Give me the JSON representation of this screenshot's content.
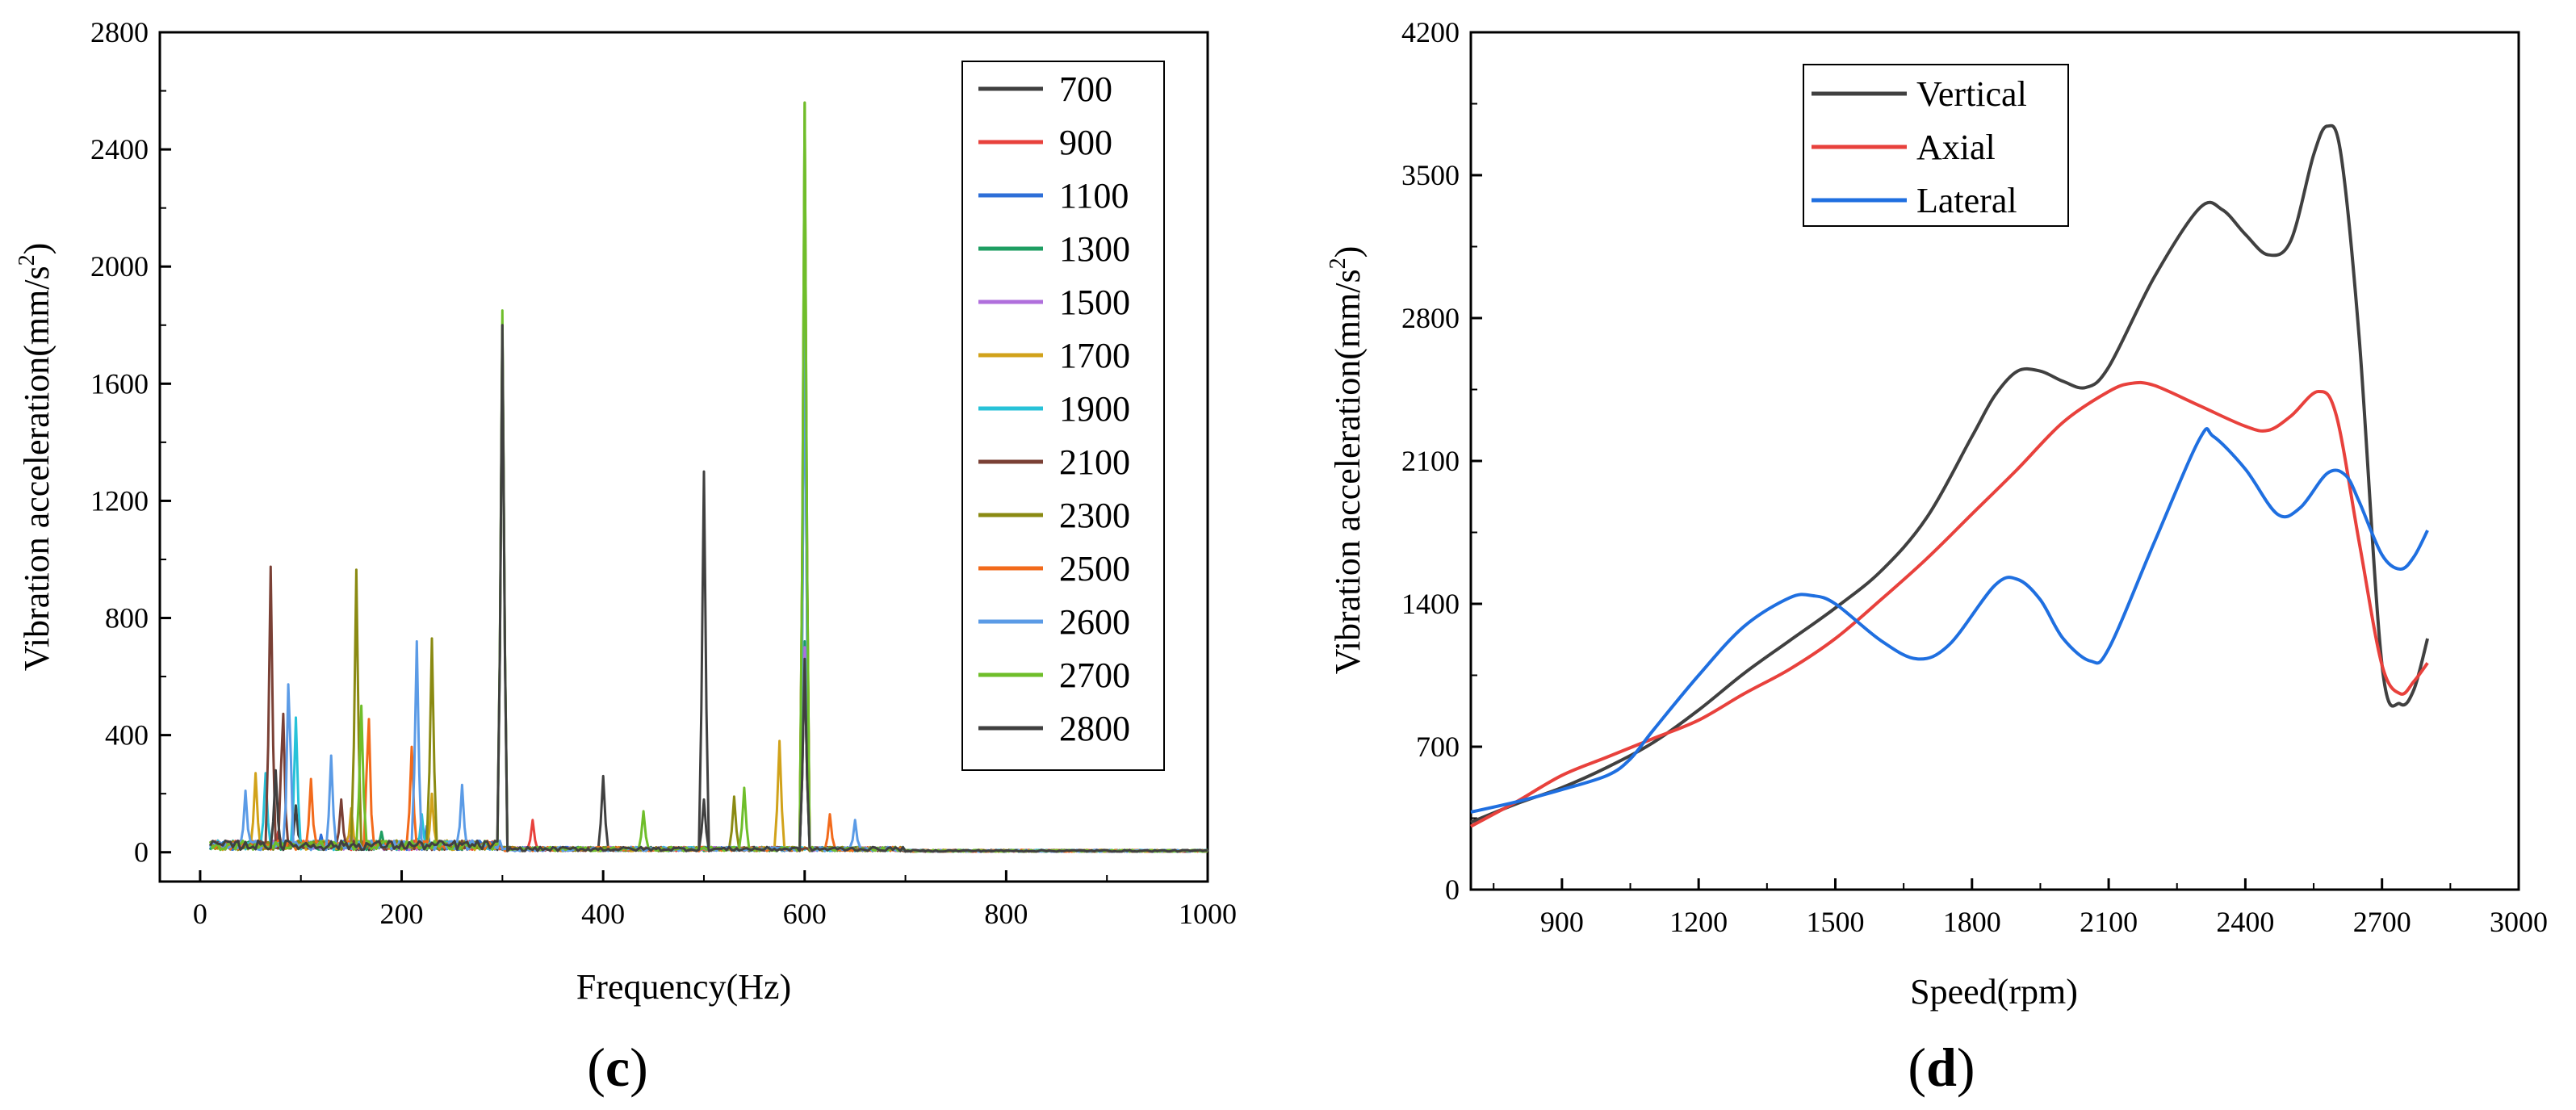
{
  "chart_data": [
    {
      "type": "line",
      "panel": "c",
      "panel_label": "c",
      "title": "",
      "xlabel": "Frequency(Hz)",
      "ylabel": "Vibration acceleration(mm/s",
      "ylabel_sup": "2",
      "ylabel_close": ")",
      "xlim": [
        -40,
        1000
      ],
      "ylim": [
        -100,
        2800
      ],
      "xticks": [
        0,
        200,
        400,
        600,
        800,
        1000
      ],
      "yticks": [
        0,
        400,
        800,
        1200,
        1600,
        2000,
        2400,
        2800
      ],
      "legend_position": "top-right",
      "series": [
        {
          "name": "700",
          "color": "#404040",
          "peaks": [
            [
              300,
              1800
            ],
            [
              500,
              1300
            ],
            [
              600,
              660
            ],
            [
              400,
              260
            ],
            [
              95,
              160
            ]
          ]
        },
        {
          "name": "900",
          "color": "#e8413c",
          "peaks": [
            [
              600,
              2350
            ],
            [
              330,
              110
            ],
            [
              78,
              80
            ]
          ]
        },
        {
          "name": "1100",
          "color": "#2e6fd8",
          "peaks": [
            [
              600,
              1880
            ],
            [
              225,
              90
            ],
            [
              120,
              60
            ]
          ]
        },
        {
          "name": "1300",
          "color": "#1e9e62",
          "peaks": [
            [
              600,
              720
            ],
            [
              180,
              70
            ],
            [
              60,
              50
            ]
          ]
        },
        {
          "name": "1500",
          "color": "#b06fdc",
          "peaks": [
            [
              600,
              700
            ],
            [
              150,
              60
            ],
            [
              90,
              40
            ]
          ]
        },
        {
          "name": "1700",
          "color": "#d1a21a",
          "peaks": [
            [
              55,
              270
            ],
            [
              230,
              200
            ],
            [
              575,
              380
            ],
            [
              150,
              150
            ]
          ]
        },
        {
          "name": "1900",
          "color": "#27c2d8",
          "peaks": [
            [
              95,
              460
            ],
            [
              65,
              270
            ],
            [
              220,
              130
            ]
          ]
        },
        {
          "name": "2100",
          "color": "#7a4035",
          "peaks": [
            [
              70,
              975
            ],
            [
              82,
              540
            ],
            [
              140,
              180
            ]
          ]
        },
        {
          "name": "2300",
          "color": "#8a8a12",
          "peaks": [
            [
              155,
              965
            ],
            [
              230,
              730
            ],
            [
              600,
              2560
            ],
            [
              530,
              190
            ]
          ]
        },
        {
          "name": "2500",
          "color": "#f26a1b",
          "peaks": [
            [
              600,
              2400
            ],
            [
              167,
              520
            ],
            [
              210,
              360
            ],
            [
              110,
              250
            ],
            [
              625,
              130
            ]
          ]
        },
        {
          "name": "2600",
          "color": "#5b9be6",
          "peaks": [
            [
              88,
              655
            ],
            [
              215,
              720
            ],
            [
              600,
              1880
            ],
            [
              130,
              330
            ],
            [
              45,
              210
            ],
            [
              260,
              230
            ],
            [
              650,
              110
            ]
          ]
        },
        {
          "name": "2700",
          "color": "#6fbe2a",
          "peaks": [
            [
              300,
              1850
            ],
            [
              600,
              2560
            ],
            [
              160,
              500
            ],
            [
              540,
              220
            ],
            [
              440,
              140
            ]
          ]
        },
        {
          "name": "2800",
          "color": "#404040",
          "peaks": [
            [
              300,
              1800
            ],
            [
              600,
              660
            ],
            [
              500,
              180
            ],
            [
              75,
              280
            ]
          ]
        }
      ]
    },
    {
      "type": "line",
      "panel": "d",
      "panel_label": "d",
      "title": "",
      "xlabel": "Speed(rpm)",
      "ylabel": "Vibration acceleration(mm/s",
      "ylabel_sup": "2",
      "ylabel_close": ")",
      "xlim": [
        700,
        3000
      ],
      "ylim": [
        0,
        4200
      ],
      "xticks": [
        900,
        1200,
        1500,
        1800,
        2100,
        2400,
        2700,
        3000
      ],
      "yticks": [
        0,
        700,
        1400,
        2100,
        2800,
        3500,
        4200
      ],
      "legend_position": "top-left",
      "series": [
        {
          "name": "Vertical",
          "color": "#404040",
          "x": [
            700,
            800,
            900,
            1000,
            1100,
            1200,
            1300,
            1400,
            1500,
            1600,
            1700,
            1800,
            1850,
            1900,
            1950,
            2000,
            2050,
            2100,
            2200,
            2300,
            2350,
            2400,
            2450,
            2500,
            2550,
            2580,
            2610,
            2650,
            2700,
            2740,
            2770,
            2800
          ],
          "y": [
            330,
            420,
            500,
            600,
            720,
            880,
            1060,
            1220,
            1380,
            1560,
            1820,
            2220,
            2420,
            2540,
            2540,
            2490,
            2460,
            2560,
            3000,
            3340,
            3330,
            3210,
            3110,
            3180,
            3600,
            3740,
            3600,
            2700,
            1100,
            910,
            980,
            1230
          ]
        },
        {
          "name": "Axial",
          "color": "#e8413c",
          "x": [
            700,
            800,
            900,
            1000,
            1100,
            1200,
            1300,
            1400,
            1500,
            1600,
            1700,
            1800,
            1900,
            2000,
            2100,
            2150,
            2200,
            2300,
            2400,
            2450,
            2500,
            2560,
            2600,
            2650,
            2700,
            2740,
            2770,
            2800
          ],
          "y": [
            310,
            430,
            560,
            650,
            740,
            830,
            960,
            1080,
            1230,
            1420,
            1620,
            1840,
            2060,
            2290,
            2440,
            2480,
            2470,
            2370,
            2270,
            2250,
            2320,
            2440,
            2320,
            1700,
            1100,
            960,
            1020,
            1110
          ]
        },
        {
          "name": "Lateral",
          "color": "#1f6fe0",
          "x": [
            700,
            800,
            900,
            1000,
            1050,
            1100,
            1200,
            1300,
            1400,
            1450,
            1500,
            1600,
            1680,
            1750,
            1850,
            1900,
            1950,
            2000,
            2060,
            2100,
            2200,
            2300,
            2330,
            2400,
            2470,
            2520,
            2580,
            2620,
            2650,
            2700,
            2740,
            2770,
            2800
          ],
          "y": [
            380,
            430,
            490,
            560,
            640,
            780,
            1050,
            1290,
            1430,
            1440,
            1400,
            1220,
            1130,
            1200,
            1490,
            1520,
            1420,
            1230,
            1120,
            1180,
            1700,
            2210,
            2220,
            2060,
            1840,
            1870,
            2040,
            2030,
            1900,
            1640,
            1570,
            1630,
            1760
          ]
        }
      ]
    }
  ]
}
